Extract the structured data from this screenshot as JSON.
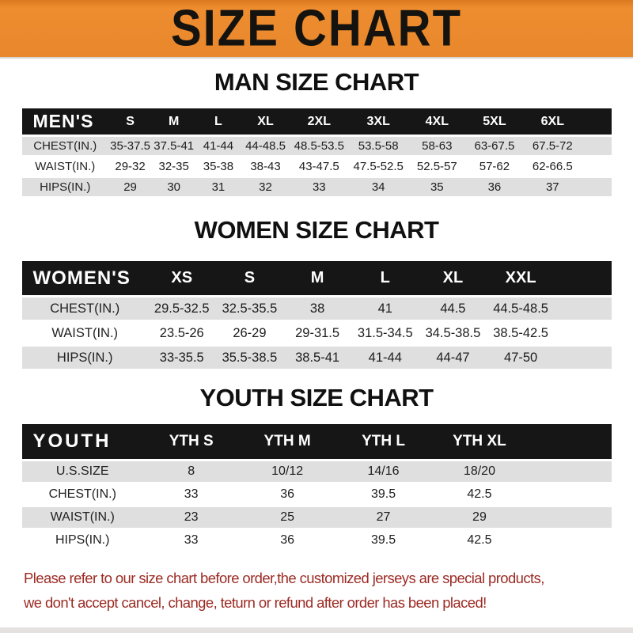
{
  "banner": {
    "title": "SIZE CHART",
    "bg_color": "#E8872B",
    "text_color": "#151310"
  },
  "sections": [
    {
      "id": "man",
      "title": "MAN SIZE CHART",
      "header_label": "MEN'S",
      "columns": [
        "S",
        "M",
        "L",
        "XL",
        "2XL",
        "3XL",
        "4XL",
        "5XL",
        "6XL"
      ],
      "rows": [
        {
          "label": "CHEST(IN.)",
          "values": [
            "35-37.5",
            "37.5-41",
            "41-44",
            "44-48.5",
            "48.5-53.5",
            "53.5-58",
            "58-63",
            "63-67.5",
            "67.5-72"
          ]
        },
        {
          "label": "WAIST(IN.)",
          "values": [
            "29-32",
            "32-35",
            "35-38",
            "38-43",
            "43-47.5",
            "47.5-52.5",
            "52.5-57",
            "57-62",
            "62-66.5"
          ]
        },
        {
          "label": "HIPS(IN.)",
          "values": [
            "29",
            "30",
            "31",
            "32",
            "33",
            "34",
            "35",
            "36",
            "37"
          ]
        }
      ]
    },
    {
      "id": "women",
      "title": "WOMEN SIZE CHART",
      "header_label": "WOMEN'S",
      "columns": [
        "XS",
        "S",
        "M",
        "L",
        "XL",
        "XXL"
      ],
      "rows": [
        {
          "label": "CHEST(IN.)",
          "values": [
            "29.5-32.5",
            "32.5-35.5",
            "38",
            "41",
            "44.5",
            "44.5-48.5"
          ]
        },
        {
          "label": "WAIST(IN.)",
          "values": [
            "23.5-26",
            "26-29",
            "29-31.5",
            "31.5-34.5",
            "34.5-38.5",
            "38.5-42.5"
          ]
        },
        {
          "label": "HIPS(IN.)",
          "values": [
            "33-35.5",
            "35.5-38.5",
            "38.5-41",
            "41-44",
            "44-47",
            "47-50"
          ]
        }
      ]
    },
    {
      "id": "youth",
      "title": "YOUTH SIZE CHART",
      "header_label": "YOUTH",
      "columns": [
        "YTH S",
        "YTH M",
        "YTH L",
        "YTH XL"
      ],
      "rows": [
        {
          "label": "U.S.SIZE",
          "values": [
            "8",
            "10/12",
            "14/16",
            "18/20"
          ]
        },
        {
          "label": "CHEST(IN.)",
          "values": [
            "33",
            "36",
            "39.5",
            "42.5"
          ]
        },
        {
          "label": "WAIST(IN.)",
          "values": [
            "23",
            "25",
            "27",
            "29"
          ]
        },
        {
          "label": "HIPS(IN.)",
          "values": [
            "33",
            "36",
            "39.5",
            "42.5"
          ]
        }
      ]
    }
  ],
  "footer": {
    "line1": "Please refer to our size chart before order,the customized jerseys are special products,",
    "line2": "we don't accept cancel, change, teturn or refund after order has been placed!",
    "text_color": "#9C2B24"
  },
  "colors": {
    "header_bar": "#161616",
    "row_shaded": "#DFDFDF",
    "banner_orange": "#E8872B"
  }
}
